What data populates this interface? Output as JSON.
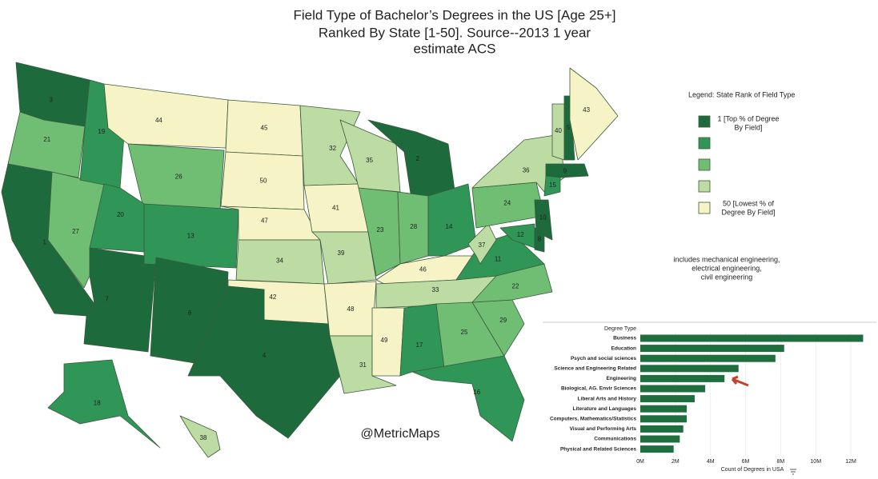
{
  "title_lines": [
    "Field Type of Bachelor’s Degrees in the US [Age 25+]",
    "Ranked By State [1-50].  Source--2013 1 year",
    "estimate ACS"
  ],
  "map": {
    "state_ranks": [
      3,
      21,
      1,
      27,
      19,
      44,
      26,
      20,
      7,
      13,
      6,
      45,
      50,
      47,
      34,
      42,
      4,
      32,
      41,
      39,
      48,
      31,
      35,
      23,
      2,
      28,
      14,
      46,
      33,
      49,
      17,
      25,
      16,
      29,
      22,
      11,
      37,
      24,
      36,
      40,
      5,
      43,
      9,
      15,
      10,
      12,
      8,
      18,
      38
    ],
    "legend": {
      "title": "Legend:  State Rank of Field Type",
      "colors": [
        "#1d6b3c",
        "#2f9657",
        "#70bd74",
        "#bcdca3",
        "#f6f3c6"
      ],
      "top_label": [
        "1 [Top % of Degree",
        "By Field]"
      ],
      "bottom_label": [
        "50 [Lowest % of",
        "Degree By Field]"
      ]
    },
    "credit": "@MetricMaps"
  },
  "note": [
    "includes mechanical engineering,",
    "electrical engineering,",
    "civil engineering"
  ],
  "chart_data": {
    "type": "bar",
    "orientation": "horizontal",
    "category_header": "Degree Type",
    "xlabel": "Count of Degrees in USA",
    "color": "#1f6e3e",
    "categories": [
      "Business",
      "Education",
      "Psych and social sciences",
      "Science and Engineering Related",
      "Engineering",
      "Biological, AG. Envir Sciences",
      "Liberal Arts and History",
      "Literature and Languages",
      "Computers, Mathematics/Statistics",
      "Visual and Performing Arts",
      "Communications",
      "Physical and Related Sciences"
    ],
    "values": [
      12700000,
      8200000,
      7700000,
      5600000,
      4800000,
      3700000,
      3100000,
      2650000,
      2650000,
      2450000,
      2250000,
      1900000
    ],
    "xlim": [
      0,
      13000000
    ],
    "xticks": [
      {
        "value": 0,
        "label": "0M"
      },
      {
        "value": 2000000,
        "label": "2M"
      },
      {
        "value": 4000000,
        "label": "4M"
      },
      {
        "value": 6000000,
        "label": "6M"
      },
      {
        "value": 8000000,
        "label": "8M"
      },
      {
        "value": 10000000,
        "label": "10M"
      },
      {
        "value": 12000000,
        "label": "12M"
      }
    ]
  }
}
